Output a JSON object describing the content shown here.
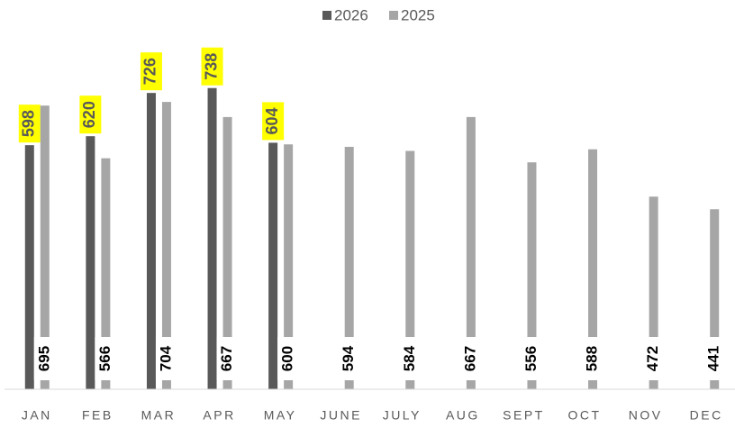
{
  "chart_data": {
    "type": "bar",
    "categories": [
      "JAN",
      "FEB",
      "MAR",
      "APR",
      "MAY",
      "JUNE",
      "JULY",
      "AUG",
      "SEPT",
      "OCT",
      "NOV",
      "DEC"
    ],
    "series": [
      {
        "name": "2026",
        "color": "#595959",
        "values": [
          598,
          620,
          726,
          738,
          604,
          null,
          null,
          null,
          null,
          null,
          null,
          null
        ]
      },
      {
        "name": "2025",
        "color": "#a6a6a6",
        "values": [
          695,
          566,
          704,
          667,
          600,
          594,
          584,
          667,
          556,
          588,
          472,
          441
        ]
      }
    ],
    "ylim": [
      0,
      850
    ],
    "legend": "top"
  }
}
